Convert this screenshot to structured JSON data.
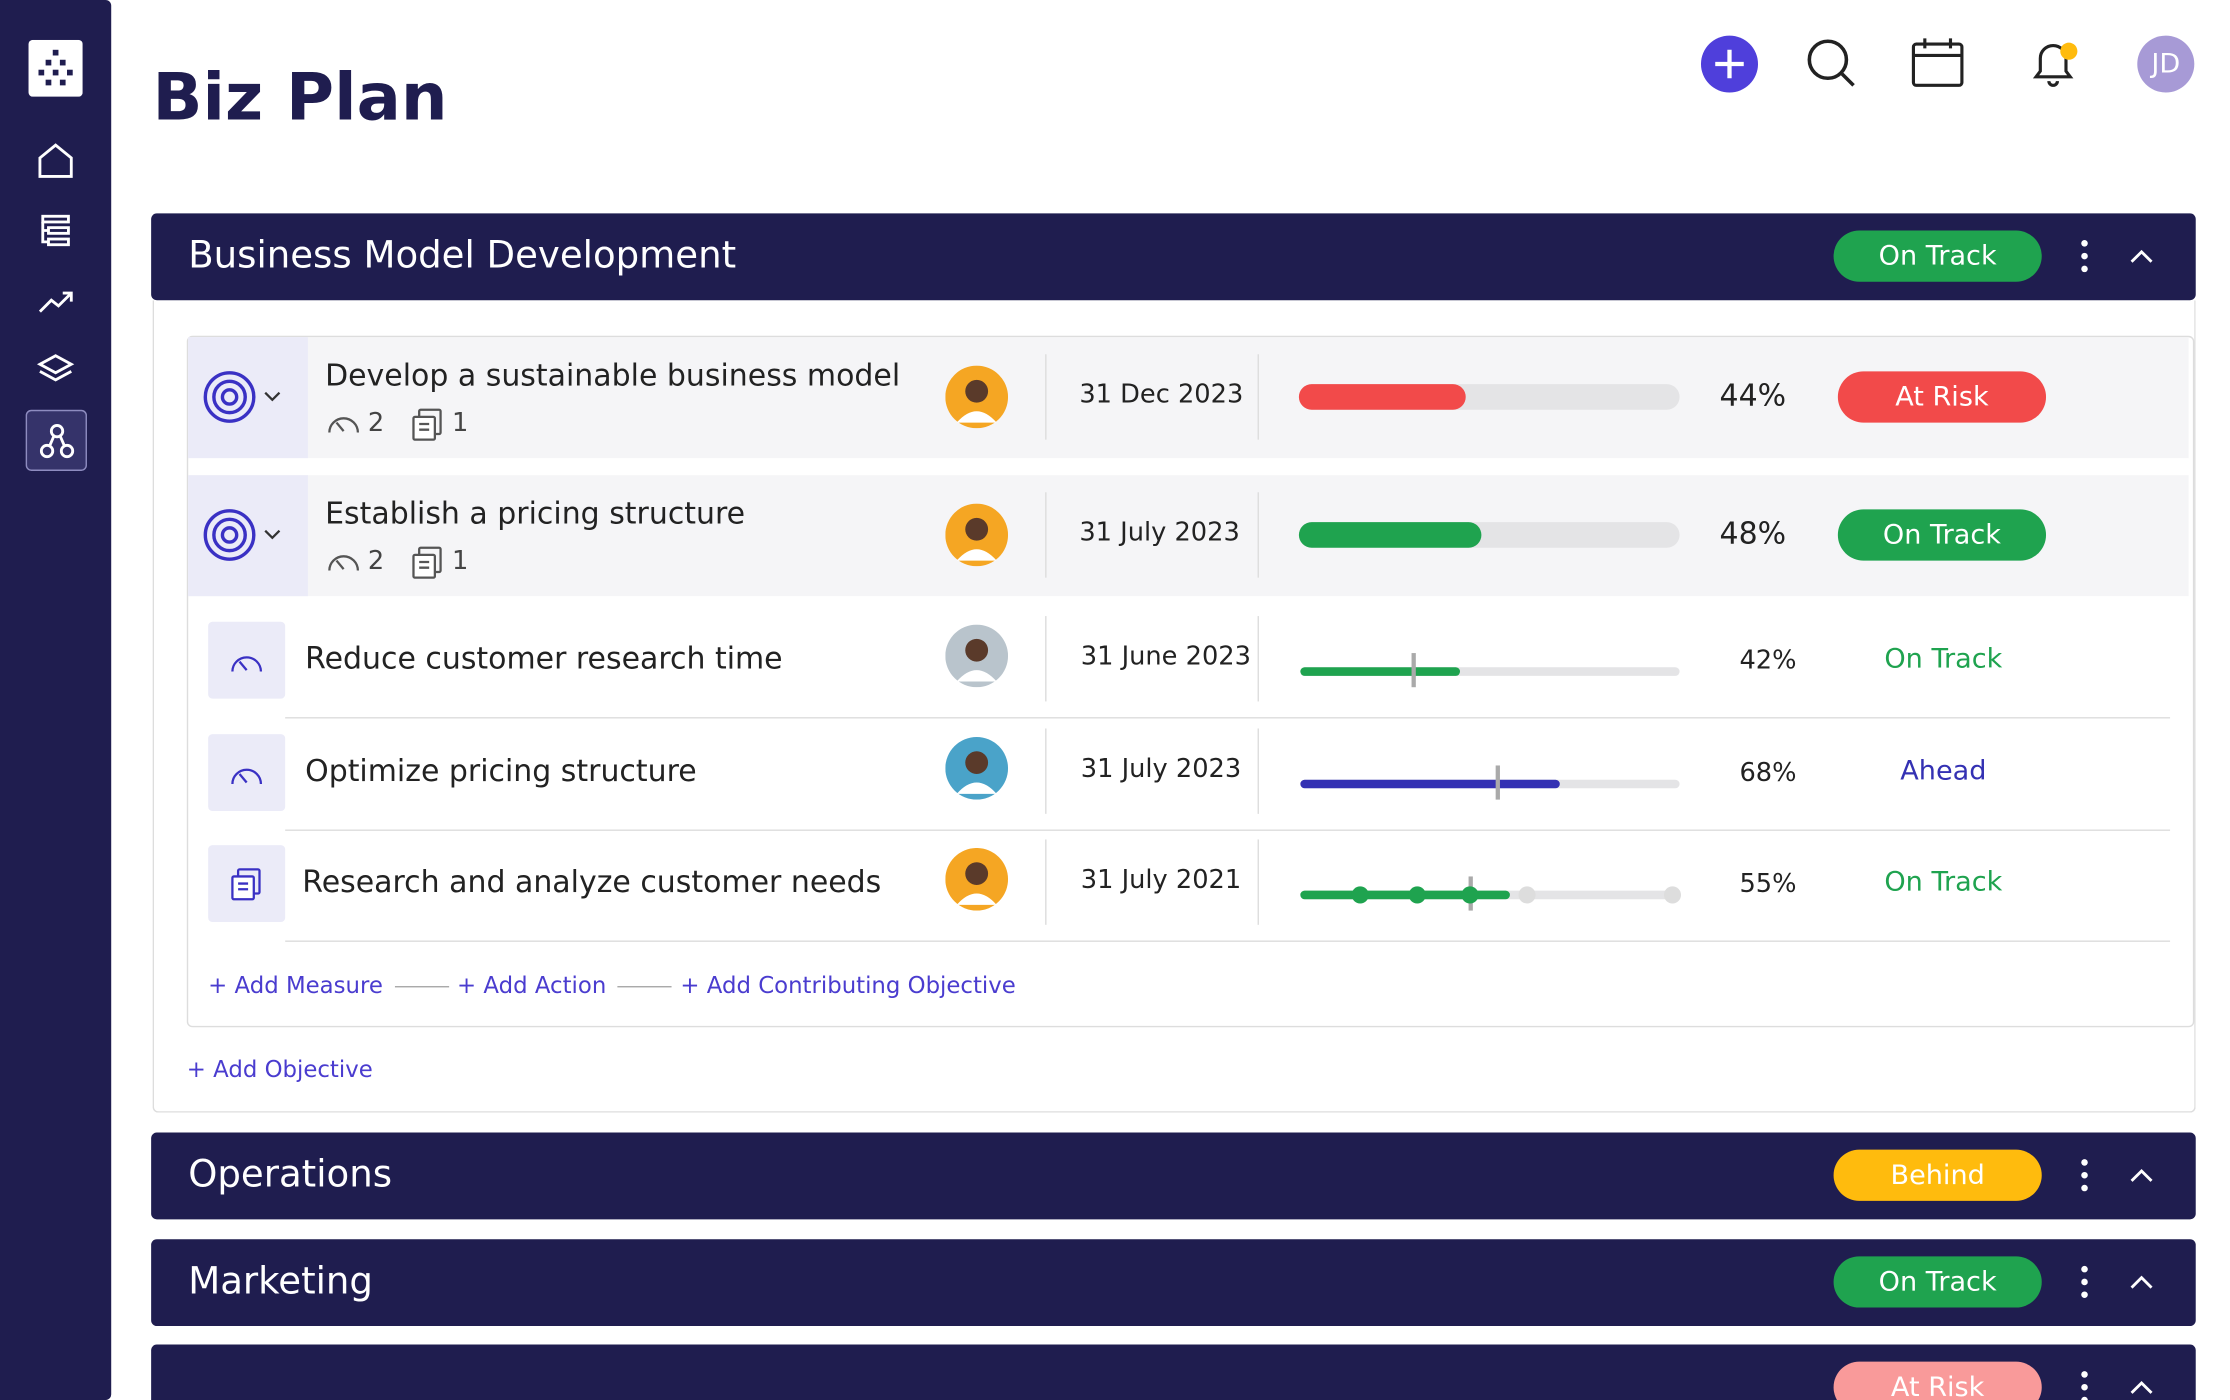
{
  "header": {
    "title": "Biz Plan",
    "avatar": "JD"
  },
  "status_colors": {
    "On Track": "#1fa34f",
    "At Risk": "#f24a4a",
    "Behind": "#ffbb0d",
    "Ahead": "#3431b3"
  },
  "sections": [
    {
      "name": "Business Model Development",
      "status": "On Track",
      "objectives": [
        {
          "title": "Develop a sustainable business model",
          "measures": 2,
          "actions": 1,
          "date": "31 Dec 2023",
          "progress": 44,
          "progress_label": "44%",
          "status": "At Risk",
          "color": "#f24a4a",
          "avatar": "#f5a623"
        },
        {
          "title": "Establish a pricing structure",
          "measures": 2,
          "actions": 1,
          "date": "31 July 2023",
          "progress": 48,
          "progress_label": "48%",
          "status": "On Track",
          "color": "#1fa34f",
          "avatar": "#f5a623",
          "children": [
            {
              "title": "Reduce customer research time",
              "date": "31 June 2023",
              "progress": 42,
              "progress_label": "42%",
              "status": "On Track",
              "color": "#1fa34f",
              "target": 30,
              "avatar": "#b9c4cc"
            },
            {
              "title": "Optimize pricing structure",
              "date": "31 July 2023",
              "progress": 68,
              "progress_label": "68%",
              "status": "Ahead",
              "color": "#3431b3",
              "target": 52,
              "avatar": "#4aa3c9"
            },
            {
              "title": "Research and analyze customer needs",
              "date": "31 July 2021",
              "progress": 55,
              "progress_label": "55%",
              "status": "On Track",
              "color": "#1fa34f",
              "milestones": [
                16,
                31,
                45,
                60,
                98
              ],
              "target": 45,
              "avatar": "#f5a623"
            }
          ]
        }
      ],
      "links": [
        "+ Add Measure",
        "+ Add Action",
        "+ Add Contributing Objective"
      ],
      "add_objective": "+ Add Objective"
    },
    {
      "name": "Operations",
      "status": "Behind"
    },
    {
      "name": "Marketing",
      "status": "On Track"
    },
    {
      "status": "At Risk",
      "status_color": "#f99a9a"
    }
  ]
}
